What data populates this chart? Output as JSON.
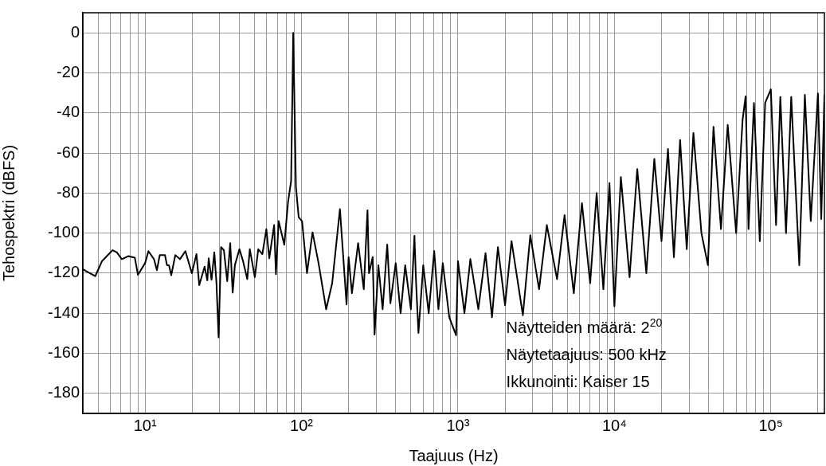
{
  "chart_data": {
    "type": "line",
    "xlabel": "Taajuus (Hz)",
    "ylabel": "Tehospektri (dBFS)",
    "log": "x",
    "grid": true,
    "marker": "none",
    "line_style": "solid",
    "xlim": [
      4,
      220000
    ],
    "ylim": [
      -190,
      10
    ],
    "xticks": [
      {
        "value": 5,
        "label": null
      },
      {
        "value": 6,
        "label": null
      },
      {
        "value": 7,
        "label": null
      },
      {
        "value": 8,
        "label": null
      },
      {
        "value": 9,
        "label": null
      },
      {
        "value": 10,
        "label": "10¹"
      },
      {
        "value": 20,
        "label": null
      },
      {
        "value": 30,
        "label": null
      },
      {
        "value": 40,
        "label": null
      },
      {
        "value": 50,
        "label": null
      },
      {
        "value": 60,
        "label": null
      },
      {
        "value": 70,
        "label": null
      },
      {
        "value": 80,
        "label": null
      },
      {
        "value": 90,
        "label": null
      },
      {
        "value": 100,
        "label": "10²"
      },
      {
        "value": 200,
        "label": null
      },
      {
        "value": 300,
        "label": null
      },
      {
        "value": 400,
        "label": null
      },
      {
        "value": 500,
        "label": null
      },
      {
        "value": 600,
        "label": null
      },
      {
        "value": 700,
        "label": null
      },
      {
        "value": 800,
        "label": null
      },
      {
        "value": 900,
        "label": null
      },
      {
        "value": 1000,
        "label": "10³"
      },
      {
        "value": 2000,
        "label": null
      },
      {
        "value": 3000,
        "label": null
      },
      {
        "value": 4000,
        "label": null
      },
      {
        "value": 5000,
        "label": null
      },
      {
        "value": 6000,
        "label": null
      },
      {
        "value": 7000,
        "label": null
      },
      {
        "value": 8000,
        "label": null
      },
      {
        "value": 9000,
        "label": null
      },
      {
        "value": 10000,
        "label": "10⁴"
      },
      {
        "value": 20000,
        "label": null
      },
      {
        "value": 30000,
        "label": null
      },
      {
        "value": 40000,
        "label": null
      },
      {
        "value": 50000,
        "label": null
      },
      {
        "value": 60000,
        "label": null
      },
      {
        "value": 70000,
        "label": null
      },
      {
        "value": 80000,
        "label": null
      },
      {
        "value": 90000,
        "label": null
      },
      {
        "value": 100000,
        "label": "10⁵"
      },
      {
        "value": 200000,
        "label": null
      }
    ],
    "yticks": [
      -180,
      -160,
      -140,
      -120,
      -100,
      -80,
      -60,
      -40,
      -20,
      0
    ],
    "annotations": [
      "Näytteiden määrä: 2$^{20}$",
      "Näytetaajuus: 500 kHz",
      "Ikkunointi: Kaiser 15"
    ],
    "series": [
      {
        "color": "#000000",
        "x": [
          4,
          4.2,
          4.8,
          5.3,
          6.2,
          6.6,
          7.1,
          7.8,
          8.6,
          9,
          10,
          10.5,
          11.4,
          11.9,
          12.4,
          13.4,
          13.8,
          14.2,
          14.7,
          15.6,
          16.7,
          18.1,
          19.9,
          21.3,
          22.2,
          24,
          25,
          25.5,
          26.6,
          27.7,
          28.6,
          29.5,
          30.6,
          31.9,
          33.5,
          35,
          36.3,
          37.5,
          40.1,
          42.3,
          45,
          46.7,
          50.3,
          52.9,
          56.2,
          59.6,
          62.2,
          66.8,
          68.6,
          71.4,
          77.6,
          82,
          85.8,
          88.5,
          92.1,
          95.9,
          100.8,
          108.4,
          117.6,
          128.5,
          143.7,
          157,
          176,
          194,
          200,
          210,
          230,
          250,
          264,
          270,
          285,
          293,
          310,
          330,
          353,
          370,
          400,
          430,
          460,
          500,
          527,
          540,
          559,
          600,
          650,
          705,
          750,
          800,
          880,
          973,
          1000,
          1100,
          1200,
          1350,
          1500,
          1650,
          1800,
          2000,
          2200,
          2600,
          2900,
          3300,
          3700,
          4300,
          4800,
          5500,
          6200,
          7000,
          7700,
          8500,
          9300,
          10000,
          11000,
          12500,
          14000,
          16000,
          18000,
          20000,
          22000,
          24000,
          26300,
          29000,
          32000,
          36000,
          39600,
          43000,
          48000,
          53000,
          60000,
          66000,
          69000,
          72000,
          78000,
          85000,
          92000,
          100000,
          108000,
          115000,
          125000,
          135000,
          152000,
          165000,
          180000,
          200000,
          210000,
          220000
        ],
        "values": [
          -118,
          -119,
          -121.5,
          -114,
          -108.5,
          -109.6,
          -113,
          -111.5,
          -112.3,
          -120.8,
          -115,
          -109,
          -113,
          -118.5,
          -111,
          -111,
          -116,
          -116,
          -121,
          -111,
          -113,
          -109,
          -120,
          -110.5,
          -126,
          -116.7,
          -123.6,
          -112.6,
          -123.3,
          -109.6,
          -125,
          -152,
          -107,
          -108.5,
          -124,
          -105,
          -129.7,
          -116,
          -108,
          -114,
          -123,
          -108,
          -122,
          -108,
          -110.5,
          -98,
          -112.6,
          -96,
          -120.5,
          -94,
          -105.8,
          -84.5,
          -74,
          0,
          -77,
          -92,
          -94,
          -120,
          -99.6,
          -115,
          -138,
          -125,
          -88,
          -135.6,
          -112,
          -130,
          -105,
          -128,
          -88.6,
          -120,
          -112,
          -150.6,
          -116,
          -138,
          -105.7,
          -135,
          -115,
          -140,
          -116,
          -138,
          -101.3,
          -125,
          -149.8,
          -116,
          -140,
          -108.9,
          -138,
          -115,
          -142,
          -151,
          -114,
          -140,
          -113,
          -138,
          -110,
          -142,
          -107,
          -136,
          -104,
          -141,
          -101,
          -128,
          -96,
          -123,
          -91,
          -130,
          -85,
          -125,
          -80,
          -128,
          -75,
          -136.5,
          -72,
          -122,
          -68,
          -120,
          -63,
          -104,
          -58,
          -112,
          -53.5,
          -108,
          -50,
          -100,
          -116,
          -47,
          -98,
          -46,
          -100,
          -43.3,
          -31.7,
          -98,
          -35,
          -104,
          -35,
          -28.2,
          -96,
          -32,
          -100,
          -32,
          -116,
          -31,
          -94,
          -30.3,
          -93,
          -31
        ]
      }
    ]
  }
}
